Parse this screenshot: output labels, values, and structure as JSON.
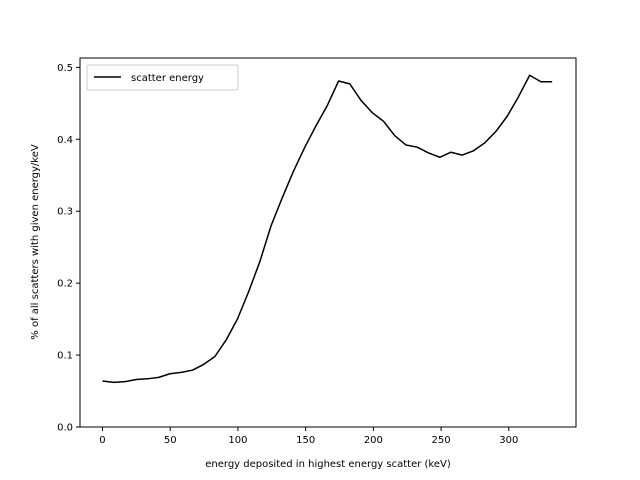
{
  "chart_data": {
    "type": "line",
    "title": "",
    "xlabel": "energy deposited in highest energy scatter (keV)",
    "ylabel": "% of all scatters with given energy/keV",
    "xlim": [
      -16.6,
      349.6
    ],
    "ylim": [
      0.0,
      0.513
    ],
    "xticks": [
      0,
      50,
      100,
      150,
      200,
      250,
      300
    ],
    "yticks": [
      0.0,
      0.1,
      0.2,
      0.3,
      0.4,
      0.5
    ],
    "xtick_labels": [
      "0",
      "50",
      "100",
      "150",
      "200",
      "250",
      "300"
    ],
    "ytick_labels": [
      "0.0",
      "0.1",
      "0.2",
      "0.3",
      "0.4",
      "0.5"
    ],
    "grid": false,
    "legend": {
      "placement": "upper-left"
    },
    "colors": {
      "line": "#000000",
      "frame": "#000000",
      "legend_border": "#cccccc"
    },
    "series": [
      {
        "name": "scatter energy",
        "x": [
          0,
          8.3,
          16.6,
          24.9,
          33.2,
          41.5,
          49.8,
          58.1,
          66.4,
          74.7,
          83.0,
          91.3,
          99.6,
          107.9,
          116.2,
          124.5,
          132.8,
          141.1,
          149.4,
          157.7,
          166.0,
          174.3,
          182.6,
          190.9,
          199.2,
          207.5,
          215.8,
          224.1,
          232.4,
          240.7,
          249.0,
          257.3,
          265.6,
          273.9,
          282.2,
          290.5,
          298.8,
          307.1,
          315.4,
          323.7,
          332.0
        ],
        "y": [
          0.064,
          0.062,
          0.063,
          0.066,
          0.067,
          0.069,
          0.074,
          0.076,
          0.079,
          0.087,
          0.098,
          0.121,
          0.15,
          0.188,
          0.23,
          0.28,
          0.319,
          0.356,
          0.389,
          0.419,
          0.447,
          0.481,
          0.477,
          0.454,
          0.437,
          0.425,
          0.405,
          0.392,
          0.389,
          0.381,
          0.375,
          0.382,
          0.378,
          0.384,
          0.395,
          0.411,
          0.432,
          0.459,
          0.489,
          0.48,
          0.48
        ]
      }
    ]
  }
}
